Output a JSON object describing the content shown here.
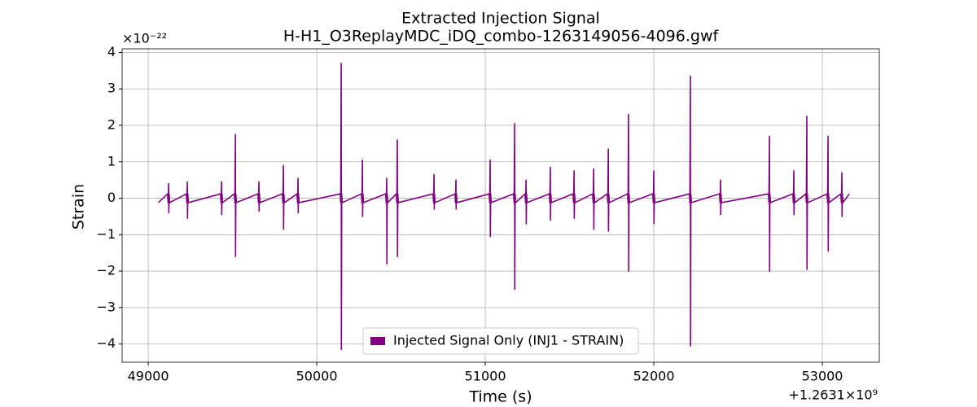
{
  "chart_data": {
    "type": "line",
    "title": "Extracted Injection Signal",
    "subtitle": "H-H1_O3ReplayMDC_iDQ_combo-1263149056-4096.gwf",
    "x_label": "Time (s)",
    "y_label": "Strain",
    "x_offset_label": "+1.2631×10⁹",
    "y_multiplier_label": "×10⁻²²",
    "grid": true,
    "legend_loc": "lower center",
    "xlim": [
      48845,
      53338
    ],
    "ylim": [
      -4.5,
      4.1
    ],
    "xticks": [
      49000,
      50000,
      51000,
      52000,
      53000
    ],
    "yticks": [
      {
        "value": -4,
        "label": "−4"
      },
      {
        "value": -3,
        "label": "−3"
      },
      {
        "value": -2,
        "label": "−2"
      },
      {
        "value": -1,
        "label": "−1"
      },
      0,
      1,
      2,
      3,
      4
    ],
    "x": [
      49060,
      49115,
      49118,
      49121,
      49122,
      49124,
      49127,
      49226,
      49229,
      49232,
      49233,
      49235,
      49238,
      49429,
      49432,
      49435,
      49436,
      49438,
      49441,
      49511,
      49514,
      49517,
      49518,
      49520,
      49523,
      49651,
      49654,
      49657,
      49658,
      49660,
      49663,
      49796,
      49799,
      49802,
      49803,
      49805,
      49808,
      49883,
      49886,
      49889,
      49890,
      49892,
      49895,
      50139,
      50142,
      50145,
      50146,
      50148,
      50151,
      50265,
      50268,
      50271,
      50272,
      50274,
      50277,
      50409,
      50412,
      50415,
      50416,
      50418,
      50421,
      50472,
      50475,
      50478,
      50479,
      50481,
      50484,
      50690,
      50693,
      50696,
      50697,
      50699,
      50702,
      50820,
      50823,
      50826,
      50827,
      50829,
      50832,
      51023,
      51026,
      51029,
      51030,
      51032,
      51035,
      51168,
      51171,
      51174,
      51175,
      51177,
      51180,
      51236,
      51239,
      51242,
      51243,
      51245,
      51248,
      51380,
      51383,
      51386,
      51387,
      51389,
      51392,
      51521,
      51524,
      51527,
      51528,
      51530,
      51533,
      51637,
      51640,
      51643,
      51644,
      51646,
      51649,
      51724,
      51727,
      51730,
      51731,
      51733,
      51736,
      51844,
      51847,
      51850,
      51851,
      51853,
      51856,
      51994,
      51997,
      52000,
      52001,
      52003,
      52006,
      52211,
      52214,
      52217,
      52218,
      52220,
      52223,
      52390,
      52393,
      52396,
      52397,
      52399,
      52402,
      52680,
      52683,
      52686,
      52687,
      52689,
      52692,
      52825,
      52828,
      52831,
      52832,
      52834,
      52837,
      52902,
      52905,
      52908,
      52909,
      52911,
      52914,
      53028,
      53031,
      53034,
      53035,
      53037,
      53040,
      53110,
      53113,
      53116,
      53117,
      53119,
      53122,
      53160
    ],
    "series": [
      {
        "name": "Injected Signal Only (INJ1 - STRAIN)",
        "color": "#800080",
        "values": [
          -0.12,
          0.12,
          -0.12,
          0.4,
          -0.4,
          0.12,
          -0.12,
          0.12,
          -0.12,
          0.45,
          -0.55,
          0.12,
          -0.12,
          0.12,
          -0.12,
          0.45,
          -0.45,
          0.12,
          -0.12,
          0.12,
          -0.12,
          1.75,
          -1.6,
          0.12,
          -0.12,
          0.12,
          -0.12,
          0.45,
          -0.35,
          0.12,
          -0.12,
          0.12,
          -0.12,
          0.9,
          -0.85,
          0.12,
          -0.12,
          0.12,
          -0.12,
          0.55,
          -0.4,
          0.12,
          -0.12,
          0.12,
          -0.12,
          3.7,
          -4.15,
          0.12,
          -0.12,
          0.12,
          -0.12,
          1.05,
          -0.5,
          0.12,
          -0.12,
          0.12,
          -0.12,
          0.55,
          -1.8,
          0.12,
          -0.12,
          0.12,
          -0.12,
          1.6,
          -1.6,
          0.12,
          -0.12,
          0.12,
          -0.12,
          0.65,
          -0.3,
          0.12,
          -0.12,
          0.12,
          -0.12,
          0.5,
          -0.3,
          0.12,
          -0.12,
          0.12,
          -0.12,
          1.05,
          -1.05,
          0.12,
          -0.12,
          0.12,
          -0.12,
          2.05,
          -2.5,
          0.12,
          -0.12,
          0.12,
          -0.12,
          0.5,
          -0.7,
          0.12,
          -0.12,
          0.12,
          -0.12,
          0.85,
          -0.6,
          0.12,
          -0.12,
          0.12,
          -0.12,
          0.75,
          -0.55,
          0.12,
          -0.12,
          0.12,
          -0.12,
          0.8,
          -0.85,
          0.12,
          -0.12,
          0.12,
          -0.12,
          1.35,
          -0.9,
          0.12,
          -0.12,
          0.12,
          -0.12,
          2.3,
          -2.0,
          0.12,
          -0.12,
          0.12,
          -0.12,
          0.75,
          -0.7,
          0.12,
          -0.12,
          0.12,
          -0.12,
          3.35,
          -4.05,
          0.12,
          -0.12,
          0.12,
          -0.12,
          0.5,
          -0.45,
          0.12,
          -0.12,
          0.12,
          -0.12,
          1.7,
          -2.0,
          0.12,
          -0.12,
          0.12,
          -0.12,
          0.75,
          -0.45,
          0.12,
          -0.12,
          0.12,
          -0.12,
          2.25,
          -1.95,
          0.12,
          -0.12,
          0.12,
          -0.12,
          1.7,
          -1.45,
          0.12,
          -0.12,
          0.12,
          -0.12,
          0.7,
          -0.5,
          0.12,
          -0.12,
          0.12
        ]
      }
    ]
  }
}
